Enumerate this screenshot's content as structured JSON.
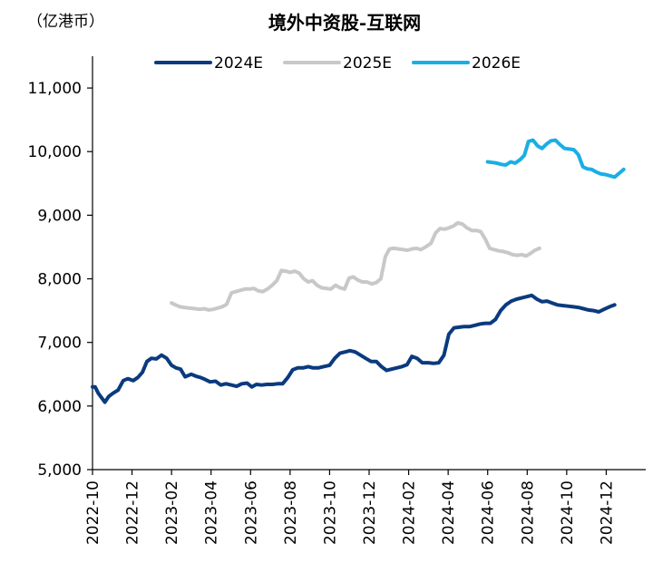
{
  "chart_data": {
    "type": "line",
    "title": "境外中资股-互联网",
    "unit_label": "（亿港币）",
    "ylim": [
      5000,
      11500
    ],
    "yticks": [
      5000,
      6000,
      7000,
      8000,
      9000,
      10000,
      11000
    ],
    "ytick_labels": [
      "5,000",
      "6,000",
      "7,000",
      "8,000",
      "9,000",
      "10,000",
      "11,000"
    ],
    "xlim": [
      "2022-10",
      "2025-02"
    ],
    "xtick_labels": [
      "2022-10",
      "2022-12",
      "2023-02",
      "2023-04",
      "2023-06",
      "2023-08",
      "2023-10",
      "2023-12",
      "2024-02",
      "2024-04",
      "2024-06",
      "2024-08",
      "2024-10",
      "2024-12"
    ],
    "legend_position": "top",
    "grid": false,
    "series": [
      {
        "name": "2024E",
        "color": "#0b3a7e",
        "points": [
          [
            "2022-10-01",
            6300
          ],
          [
            "2022-10-05",
            6300
          ],
          [
            "2022-10-10",
            6200
          ],
          [
            "2022-10-15",
            6130
          ],
          [
            "2022-10-20",
            6060
          ],
          [
            "2022-10-26",
            6150
          ],
          [
            "2022-11-02",
            6200
          ],
          [
            "2022-11-10",
            6250
          ],
          [
            "2022-11-18",
            6400
          ],
          [
            "2022-11-25",
            6430
          ],
          [
            "2022-12-03",
            6400
          ],
          [
            "2022-12-10",
            6450
          ],
          [
            "2022-12-17",
            6530
          ],
          [
            "2022-12-24",
            6700
          ],
          [
            "2022-12-31",
            6750
          ],
          [
            "2023-01-08",
            6740
          ],
          [
            "2023-01-16",
            6800
          ],
          [
            "2023-01-24",
            6750
          ],
          [
            "2023-02-01",
            6640
          ],
          [
            "2023-02-08",
            6600
          ],
          [
            "2023-02-15",
            6580
          ],
          [
            "2023-02-22",
            6460
          ],
          [
            "2023-03-01",
            6500
          ],
          [
            "2023-03-08",
            6470
          ],
          [
            "2023-03-15",
            6450
          ],
          [
            "2023-03-22",
            6420
          ],
          [
            "2023-03-30",
            6380
          ],
          [
            "2023-04-08",
            6390
          ],
          [
            "2023-04-16",
            6330
          ],
          [
            "2023-04-24",
            6350
          ],
          [
            "2023-05-02",
            6330
          ],
          [
            "2023-05-10",
            6310
          ],
          [
            "2023-05-18",
            6350
          ],
          [
            "2023-05-26",
            6360
          ],
          [
            "2023-06-03",
            6300
          ],
          [
            "2023-06-10",
            6340
          ],
          [
            "2023-06-18",
            6330
          ],
          [
            "2023-06-26",
            6340
          ],
          [
            "2023-07-04",
            6340
          ],
          [
            "2023-07-12",
            6350
          ],
          [
            "2023-07-20",
            6350
          ],
          [
            "2023-07-28",
            6450
          ],
          [
            "2023-08-05",
            6570
          ],
          [
            "2023-08-13",
            6600
          ],
          [
            "2023-08-21",
            6600
          ],
          [
            "2023-08-29",
            6620
          ],
          [
            "2023-09-06",
            6600
          ],
          [
            "2023-09-14",
            6600
          ],
          [
            "2023-09-22",
            6620
          ],
          [
            "2023-10-01",
            6640
          ],
          [
            "2023-10-09",
            6750
          ],
          [
            "2023-10-17",
            6830
          ],
          [
            "2023-10-25",
            6850
          ],
          [
            "2023-11-02",
            6870
          ],
          [
            "2023-11-10",
            6850
          ],
          [
            "2023-11-18",
            6800
          ],
          [
            "2023-11-26",
            6750
          ],
          [
            "2023-12-04",
            6700
          ],
          [
            "2023-12-12",
            6700
          ],
          [
            "2023-12-20",
            6620
          ],
          [
            "2023-12-28",
            6560
          ],
          [
            "2024-01-05",
            6580
          ],
          [
            "2024-01-13",
            6600
          ],
          [
            "2024-01-21",
            6620
          ],
          [
            "2024-01-29",
            6650
          ],
          [
            "2024-02-06",
            6780
          ],
          [
            "2024-02-14",
            6750
          ],
          [
            "2024-02-22",
            6680
          ],
          [
            "2024-03-01",
            6680
          ],
          [
            "2024-03-09",
            6670
          ],
          [
            "2024-03-17",
            6680
          ],
          [
            "2024-03-25",
            6800
          ],
          [
            "2024-04-02",
            7130
          ],
          [
            "2024-04-10",
            7230
          ],
          [
            "2024-04-18",
            7240
          ],
          [
            "2024-04-26",
            7250
          ],
          [
            "2024-05-04",
            7250
          ],
          [
            "2024-05-12",
            7270
          ],
          [
            "2024-05-20",
            7290
          ],
          [
            "2024-05-28",
            7300
          ],
          [
            "2024-06-05",
            7300
          ],
          [
            "2024-06-13",
            7360
          ],
          [
            "2024-06-21",
            7500
          ],
          [
            "2024-06-29",
            7590
          ],
          [
            "2024-07-07",
            7650
          ],
          [
            "2024-07-15",
            7680
          ],
          [
            "2024-07-23",
            7700
          ],
          [
            "2024-07-31",
            7720
          ],
          [
            "2024-08-08",
            7740
          ],
          [
            "2024-08-16",
            7680
          ],
          [
            "2024-08-24",
            7640
          ],
          [
            "2024-09-01",
            7650
          ],
          [
            "2024-09-09",
            7620
          ],
          [
            "2024-09-17",
            7590
          ],
          [
            "2024-09-25",
            7580
          ],
          [
            "2024-10-03",
            7570
          ],
          [
            "2024-10-11",
            7560
          ],
          [
            "2024-10-19",
            7550
          ],
          [
            "2024-10-27",
            7530
          ],
          [
            "2024-11-04",
            7510
          ],
          [
            "2024-11-12",
            7500
          ],
          [
            "2024-11-20",
            7480
          ],
          [
            "2024-11-28",
            7520
          ],
          [
            "2024-12-06",
            7560
          ],
          [
            "2024-12-14",
            7590
          ]
        ]
      },
      {
        "name": "2025E",
        "color": "#c8c8c8",
        "points": [
          [
            "2023-02-01",
            7620
          ],
          [
            "2023-02-07",
            7590
          ],
          [
            "2023-02-14",
            7560
          ],
          [
            "2023-02-21",
            7550
          ],
          [
            "2023-02-28",
            7540
          ],
          [
            "2023-03-07",
            7530
          ],
          [
            "2023-03-14",
            7520
          ],
          [
            "2023-03-21",
            7530
          ],
          [
            "2023-03-28",
            7510
          ],
          [
            "2023-04-04",
            7520
          ],
          [
            "2023-04-11",
            7540
          ],
          [
            "2023-04-18",
            7560
          ],
          [
            "2023-04-25",
            7600
          ],
          [
            "2023-05-02",
            7780
          ],
          [
            "2023-05-09",
            7800
          ],
          [
            "2023-05-16",
            7820
          ],
          [
            "2023-05-23",
            7840
          ],
          [
            "2023-05-30",
            7840
          ],
          [
            "2023-06-06",
            7850
          ],
          [
            "2023-06-13",
            7810
          ],
          [
            "2023-06-20",
            7800
          ],
          [
            "2023-06-27",
            7840
          ],
          [
            "2023-07-04",
            7900
          ],
          [
            "2023-07-11",
            7970
          ],
          [
            "2023-07-18",
            8130
          ],
          [
            "2023-07-25",
            8120
          ],
          [
            "2023-08-01",
            8100
          ],
          [
            "2023-08-08",
            8120
          ],
          [
            "2023-08-15",
            8090
          ],
          [
            "2023-08-22",
            8000
          ],
          [
            "2023-08-29",
            7950
          ],
          [
            "2023-09-05",
            7970
          ],
          [
            "2023-09-12",
            7900
          ],
          [
            "2023-09-19",
            7860
          ],
          [
            "2023-09-26",
            7850
          ],
          [
            "2023-10-03",
            7840
          ],
          [
            "2023-10-10",
            7900
          ],
          [
            "2023-10-17",
            7860
          ],
          [
            "2023-10-24",
            7840
          ],
          [
            "2023-10-31",
            8010
          ],
          [
            "2023-11-07",
            8030
          ],
          [
            "2023-11-14",
            7980
          ],
          [
            "2023-11-21",
            7950
          ],
          [
            "2023-11-28",
            7950
          ],
          [
            "2023-12-05",
            7920
          ],
          [
            "2023-12-12",
            7940
          ],
          [
            "2023-12-19",
            8000
          ],
          [
            "2023-12-26",
            8350
          ],
          [
            "2024-01-02",
            8470
          ],
          [
            "2024-01-09",
            8480
          ],
          [
            "2024-01-16",
            8470
          ],
          [
            "2024-01-23",
            8460
          ],
          [
            "2024-01-30",
            8450
          ],
          [
            "2024-02-06",
            8470
          ],
          [
            "2024-02-13",
            8480
          ],
          [
            "2024-02-20",
            8460
          ],
          [
            "2024-02-27",
            8500
          ],
          [
            "2024-03-05",
            8560
          ],
          [
            "2024-03-12",
            8720
          ],
          [
            "2024-03-19",
            8790
          ],
          [
            "2024-03-26",
            8780
          ],
          [
            "2024-04-02",
            8800
          ],
          [
            "2024-04-09",
            8830
          ],
          [
            "2024-04-16",
            8880
          ],
          [
            "2024-04-23",
            8860
          ],
          [
            "2024-04-30",
            8800
          ],
          [
            "2024-05-07",
            8760
          ],
          [
            "2024-05-14",
            8760
          ],
          [
            "2024-05-21",
            8740
          ],
          [
            "2024-05-28",
            8620
          ],
          [
            "2024-06-04",
            8480
          ],
          [
            "2024-06-11",
            8460
          ],
          [
            "2024-06-18",
            8440
          ],
          [
            "2024-06-25",
            8430
          ],
          [
            "2024-07-02",
            8410
          ],
          [
            "2024-07-09",
            8380
          ],
          [
            "2024-07-16",
            8370
          ],
          [
            "2024-07-23",
            8380
          ],
          [
            "2024-07-30",
            8360
          ],
          [
            "2024-08-06",
            8400
          ],
          [
            "2024-08-13",
            8450
          ],
          [
            "2024-08-20",
            8480
          ]
        ]
      },
      {
        "name": "2026E",
        "color": "#1aaee5",
        "points": [
          [
            "2024-06-01",
            9840
          ],
          [
            "2024-06-08",
            9830
          ],
          [
            "2024-06-15",
            9820
          ],
          [
            "2024-06-22",
            9800
          ],
          [
            "2024-06-29",
            9790
          ],
          [
            "2024-07-06",
            9840
          ],
          [
            "2024-07-13",
            9820
          ],
          [
            "2024-07-20",
            9870
          ],
          [
            "2024-07-27",
            9940
          ],
          [
            "2024-08-03",
            10160
          ],
          [
            "2024-08-10",
            10180
          ],
          [
            "2024-08-17",
            10090
          ],
          [
            "2024-08-24",
            10050
          ],
          [
            "2024-08-31",
            10120
          ],
          [
            "2024-09-07",
            10170
          ],
          [
            "2024-09-14",
            10180
          ],
          [
            "2024-09-21",
            10110
          ],
          [
            "2024-09-28",
            10050
          ],
          [
            "2024-10-05",
            10040
          ],
          [
            "2024-10-12",
            10030
          ],
          [
            "2024-10-19",
            9950
          ],
          [
            "2024-10-26",
            9760
          ],
          [
            "2024-11-02",
            9730
          ],
          [
            "2024-11-09",
            9720
          ],
          [
            "2024-11-16",
            9680
          ],
          [
            "2024-11-23",
            9650
          ],
          [
            "2024-11-30",
            9640
          ],
          [
            "2024-12-07",
            9620
          ],
          [
            "2024-12-14",
            9600
          ],
          [
            "2024-12-21",
            9660
          ],
          [
            "2024-12-28",
            9720
          ]
        ]
      }
    ]
  }
}
